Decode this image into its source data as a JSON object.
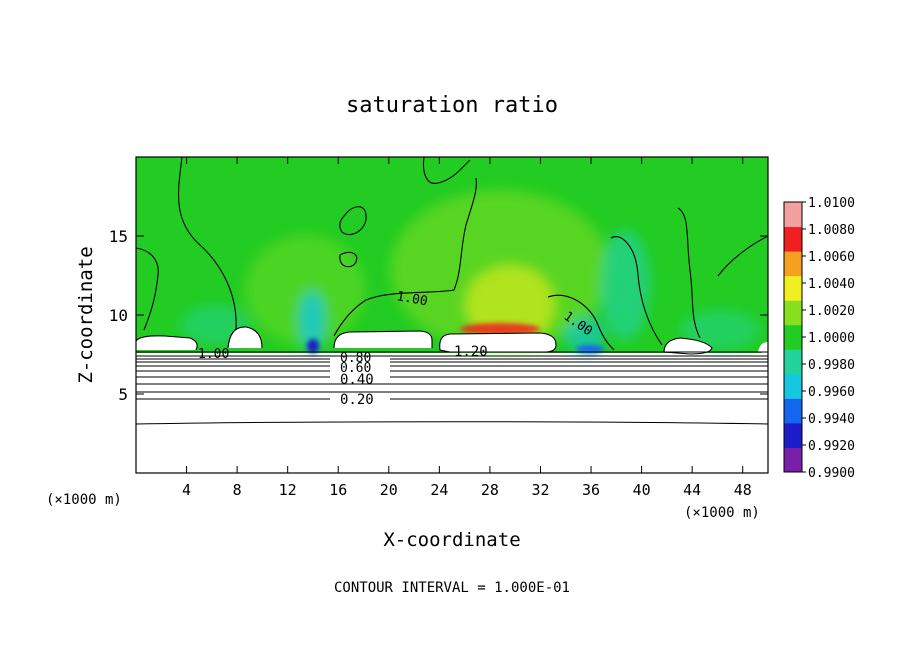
{
  "chart_data": {
    "type": "heatmap",
    "title": "saturation ratio",
    "xlabel": "X-coordinate",
    "ylabel": "Z-coordinate",
    "x_unit": "(×1000 m)",
    "z_unit": "(×1000 m)",
    "xlim": [
      0,
      50
    ],
    "ylim": [
      0,
      20
    ],
    "x_ticks": [
      4,
      8,
      12,
      16,
      20,
      24,
      28,
      32,
      36,
      40,
      44,
      48
    ],
    "y_ticks": [
      5,
      10,
      15
    ],
    "colorbar": {
      "min": 0.99,
      "max": 1.01,
      "tick_labels": [
        "0.9900",
        "0.9920",
        "0.9940",
        "0.9960",
        "0.9980",
        "1.0000",
        "1.0020",
        "1.0040",
        "1.0060",
        "1.0080",
        "1.0100"
      ],
      "colors": [
        "#7a1fa8",
        "#1c1cc8",
        "#1466f0",
        "#14c8e0",
        "#22d39c",
        "#22cc22",
        "#86e020",
        "#f0f020",
        "#f5a020",
        "#f02020",
        "#f5a0a0"
      ]
    },
    "contour_labels": [
      {
        "text": "1.00",
        "x": 10.0,
        "z": 7.6
      },
      {
        "text": "1.00",
        "x": 24.5,
        "z": 10.6
      },
      {
        "text": "1.00",
        "x": 35.0,
        "z": 9.5
      },
      {
        "text": "1.20",
        "x": 27.0,
        "z": 7.8
      },
      {
        "text": "0.80",
        "x": 17.8,
        "z": 7.1
      },
      {
        "text": "0.60",
        "x": 17.8,
        "z": 6.6
      },
      {
        "text": "0.40",
        "x": 17.8,
        "z": 5.9
      },
      {
        "text": "0.20",
        "x": 17.8,
        "z": 4.7
      }
    ],
    "contour_interval_text": "CONTOUR INTERVAL = 1.000E-01"
  }
}
